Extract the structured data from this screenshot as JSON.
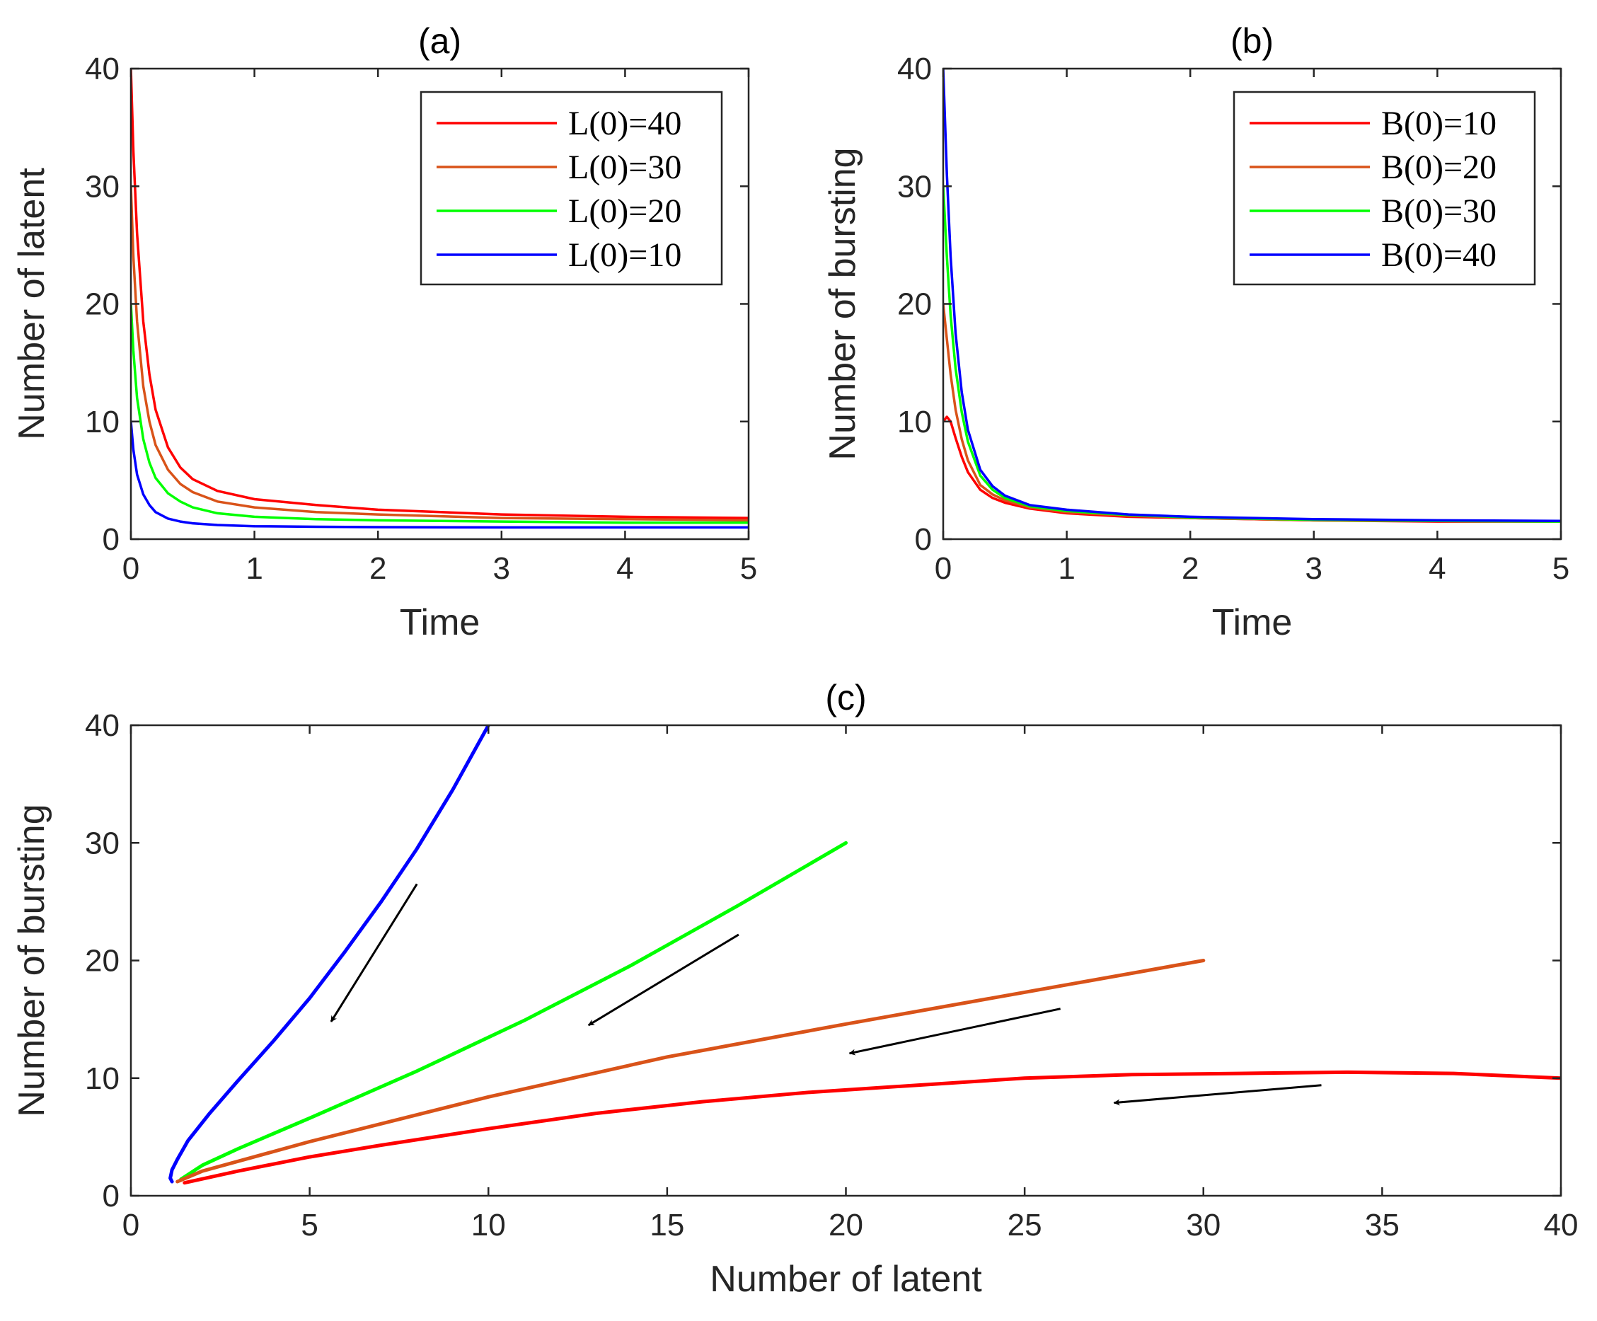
{
  "chart_data": [
    {
      "type": "line",
      "panel": "(a)",
      "title": "(a)",
      "xlabel": "Time",
      "ylabel": "Number of latent",
      "xlim": [
        0,
        5
      ],
      "ylim": [
        0,
        40
      ],
      "xticks": [
        "0",
        "1",
        "2",
        "3",
        "4",
        "5"
      ],
      "yticks": [
        "0",
        "10",
        "20",
        "30",
        "40"
      ],
      "legend_position": "top-right",
      "series": [
        {
          "name": "L(0)=40",
          "color": "#ff0000",
          "x": [
            0,
            0.02,
            0.05,
            0.1,
            0.15,
            0.2,
            0.3,
            0.4,
            0.5,
            0.7,
            1.0,
            1.5,
            2.0,
            3.0,
            4.0,
            5.0
          ],
          "y": [
            40,
            33,
            26,
            18.5,
            14,
            11,
            7.8,
            6.1,
            5.1,
            4.1,
            3.4,
            2.9,
            2.5,
            2.1,
            1.9,
            1.8
          ]
        },
        {
          "name": "L(0)=30",
          "color": "#d95319",
          "x": [
            0,
            0.02,
            0.05,
            0.1,
            0.15,
            0.2,
            0.3,
            0.4,
            0.5,
            0.7,
            1.0,
            1.5,
            2.0,
            3.0,
            4.0,
            5.0
          ],
          "y": [
            30,
            24,
            18.5,
            13,
            10,
            8,
            5.9,
            4.7,
            4.0,
            3.2,
            2.7,
            2.3,
            2.1,
            1.8,
            1.7,
            1.6
          ]
        },
        {
          "name": "L(0)=20",
          "color": "#00ff00",
          "x": [
            0,
            0.02,
            0.05,
            0.1,
            0.15,
            0.2,
            0.3,
            0.4,
            0.5,
            0.7,
            1.0,
            1.5,
            2.0,
            3.0,
            4.0,
            5.0
          ],
          "y": [
            20,
            16,
            12,
            8.5,
            6.5,
            5.2,
            3.9,
            3.2,
            2.7,
            2.2,
            1.9,
            1.7,
            1.6,
            1.5,
            1.4,
            1.4
          ]
        },
        {
          "name": "L(0)=10",
          "color": "#0000ff",
          "x": [
            0,
            0.02,
            0.05,
            0.1,
            0.15,
            0.2,
            0.3,
            0.4,
            0.5,
            0.7,
            1.0,
            1.5,
            2.0,
            3.0,
            4.0,
            5.0
          ],
          "y": [
            10,
            7.6,
            5.5,
            3.8,
            2.9,
            2.3,
            1.75,
            1.5,
            1.35,
            1.2,
            1.1,
            1.05,
            1.02,
            1.0,
            1.0,
            1.0
          ]
        }
      ]
    },
    {
      "type": "line",
      "panel": "(b)",
      "title": "(b)",
      "xlabel": "Time",
      "ylabel": "Number of bursting",
      "xlim": [
        0,
        5
      ],
      "ylim": [
        0,
        40
      ],
      "xticks": [
        "0",
        "1",
        "2",
        "3",
        "4",
        "5"
      ],
      "yticks": [
        "0",
        "10",
        "20",
        "30",
        "40"
      ],
      "legend_position": "top-right",
      "series": [
        {
          "name": "B(0)=10",
          "color": "#ff0000",
          "x": [
            0,
            0.03,
            0.06,
            0.1,
            0.15,
            0.2,
            0.3,
            0.4,
            0.5,
            0.7,
            1.0,
            1.5,
            2.0,
            3.0,
            4.0,
            5.0
          ],
          "y": [
            10,
            10.4,
            10,
            8.6,
            7,
            5.7,
            4.2,
            3.5,
            3.1,
            2.6,
            2.2,
            1.9,
            1.8,
            1.6,
            1.5,
            1.5
          ]
        },
        {
          "name": "B(0)=20",
          "color": "#d95319",
          "x": [
            0,
            0.03,
            0.06,
            0.1,
            0.15,
            0.2,
            0.3,
            0.4,
            0.5,
            0.7,
            1.0,
            1.5,
            2.0,
            3.0,
            4.0,
            5.0
          ],
          "y": [
            20,
            17,
            14,
            11,
            8.5,
            6.7,
            4.6,
            3.8,
            3.3,
            2.7,
            2.3,
            2.0,
            1.8,
            1.6,
            1.55,
            1.5
          ]
        },
        {
          "name": "B(0)=30",
          "color": "#00ff00",
          "x": [
            0,
            0.03,
            0.06,
            0.1,
            0.15,
            0.2,
            0.3,
            0.4,
            0.5,
            0.7,
            1.0,
            1.5,
            2.0,
            3.0,
            4.0,
            5.0
          ],
          "y": [
            30,
            24,
            19,
            14.5,
            10.8,
            8.3,
            5.4,
            4.2,
            3.5,
            2.8,
            2.4,
            2.05,
            1.85,
            1.65,
            1.55,
            1.5
          ]
        },
        {
          "name": "B(0)=40",
          "color": "#0000ff",
          "x": [
            0,
            0.03,
            0.06,
            0.1,
            0.15,
            0.2,
            0.3,
            0.4,
            0.5,
            0.7,
            1.0,
            1.5,
            2.0,
            3.0,
            4.0,
            5.0
          ],
          "y": [
            40,
            31,
            24,
            17.5,
            12.5,
            9.3,
            5.9,
            4.5,
            3.7,
            2.9,
            2.5,
            2.1,
            1.9,
            1.7,
            1.6,
            1.55
          ]
        }
      ]
    },
    {
      "type": "line",
      "panel": "(c)",
      "title": "(c)",
      "xlabel": "Number of latent",
      "ylabel": "Number of bursting",
      "xlim": [
        0,
        40
      ],
      "ylim": [
        0,
        40
      ],
      "xticks": [
        "0",
        "5",
        "10",
        "15",
        "20",
        "25",
        "30",
        "35",
        "40"
      ],
      "yticks": [
        "0",
        "10",
        "20",
        "30",
        "40"
      ],
      "series": [
        {
          "name": "L(0)=10, B(0)=40",
          "color": "#0000ff",
          "x": [
            10,
            9,
            8,
            7,
            6,
            5,
            4,
            3,
            2.2,
            1.6,
            1.3,
            1.15,
            1.1,
            1.15
          ],
          "y": [
            40,
            34.5,
            29.5,
            25,
            20.8,
            16.8,
            13.2,
            9.8,
            7,
            4.7,
            3.1,
            2.2,
            1.5,
            1.2
          ]
        },
        {
          "name": "L(0)=20, B(0)=30",
          "color": "#00ff00",
          "x": [
            20,
            17,
            14,
            11,
            8,
            5,
            3,
            2,
            1.4
          ],
          "y": [
            30,
            24.7,
            19.6,
            14.9,
            10.6,
            6.6,
            4,
            2.6,
            1.4
          ]
        },
        {
          "name": "L(0)=30, B(0)=20",
          "color": "#d95319",
          "x": [
            30,
            25,
            20,
            15,
            10,
            5,
            2,
            1.3
          ],
          "y": [
            20,
            17.3,
            14.6,
            11.8,
            8.4,
            4.6,
            2.1,
            1.2
          ]
        },
        {
          "name": "L(0)=40, B(0)=10",
          "color": "#ff0000",
          "x": [
            40,
            37,
            34,
            31,
            28,
            25,
            22,
            19,
            16,
            13,
            10,
            7,
            5,
            3,
            1.5
          ],
          "y": [
            10,
            10.4,
            10.5,
            10.4,
            10.3,
            10.0,
            9.4,
            8.8,
            8.0,
            7.0,
            5.7,
            4.3,
            3.3,
            2.1,
            1.1
          ]
        }
      ],
      "annotations": [
        {
          "type": "arrow",
          "from": [
            8,
            26.5
          ],
          "to": [
            5.6,
            14.8
          ]
        },
        {
          "type": "arrow",
          "from": [
            17,
            22.2
          ],
          "to": [
            12.8,
            14.5
          ]
        },
        {
          "type": "arrow",
          "from": [
            26,
            15.9
          ],
          "to": [
            20.1,
            12.1
          ]
        },
        {
          "type": "arrow",
          "from": [
            33.3,
            9.4
          ],
          "to": [
            27.5,
            7.9
          ]
        }
      ]
    }
  ]
}
